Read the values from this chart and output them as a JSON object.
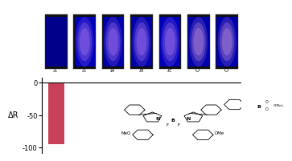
{
  "categories": [
    "H₂O₂",
    "H₂O",
    "toluene",
    "benzene",
    "hexane",
    "CHCl₃",
    "CH₂Cl₂"
  ],
  "values": [
    -95,
    0,
    0,
    0,
    0,
    0,
    0
  ],
  "bar_color": "#C8405A",
  "ylim": [
    -108,
    8
  ],
  "yticks": [
    0,
    -50,
    -100
  ],
  "ylabel": "ΔR",
  "photo_colors": [
    {
      "bg": "#00008a",
      "spot": false,
      "spot_color": null
    },
    {
      "bg": "#0000bb",
      "spot": true,
      "spot_color": "#7755dd"
    },
    {
      "bg": "#0000aa",
      "spot": true,
      "spot_color": "#7755dd"
    },
    {
      "bg": "#0000aa",
      "spot": true,
      "spot_color": "#7755dd"
    },
    {
      "bg": "#0000bb",
      "spot": true,
      "spot_color": "#7755dd"
    },
    {
      "bg": "#0000aa",
      "spot": true,
      "spot_color": "#8866cc"
    },
    {
      "bg": "#0000aa",
      "spot": true,
      "spot_color": "#8866cc"
    }
  ],
  "n_cats": 7
}
